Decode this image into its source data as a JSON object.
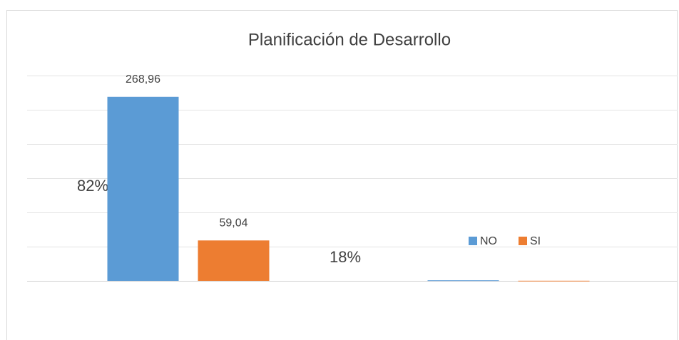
{
  "chart_data": {
    "type": "bar",
    "title": "Planificación de Desarrollo",
    "categories": [
      null,
      null
    ],
    "series": [
      {
        "name": "NO",
        "color": "#5b9bd5",
        "values": [
          268.96,
          0.82
        ],
        "value_labels": [
          "268,96",
          null
        ]
      },
      {
        "name": "SI",
        "color": "#ed7d31",
        "values": [
          59.04,
          0.18
        ],
        "value_labels": [
          "59,04",
          null
        ]
      }
    ],
    "annotations": [
      "82%",
      "18%"
    ],
    "ylim": [
      0,
      300
    ],
    "yticks": [
      0,
      50,
      100,
      150,
      200,
      250,
      300
    ],
    "grid": true,
    "legend": "right"
  }
}
